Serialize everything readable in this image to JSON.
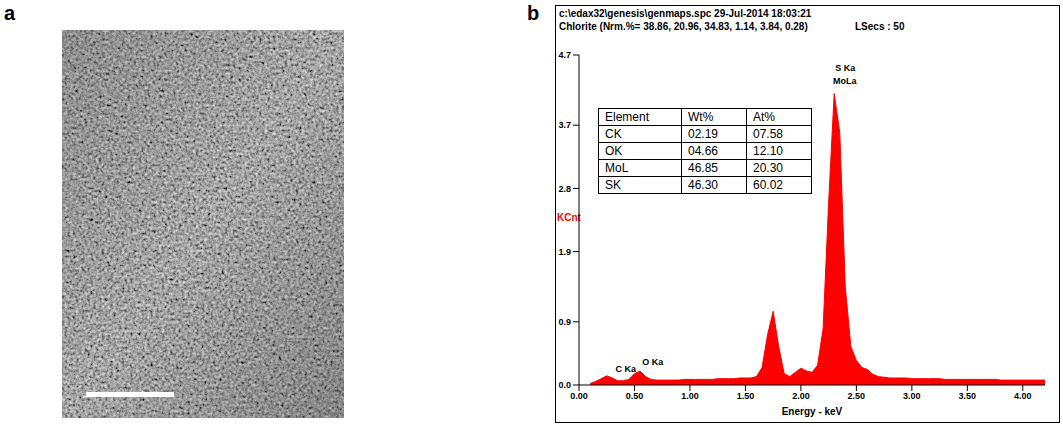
{
  "panel_labels": [
    "a",
    "b"
  ],
  "chart_data": {
    "type": "area",
    "title": "c:\\edax32\\genesis\\genmaps.spc 29-Jul-2014 18:03:21",
    "subtitle": "Chlorite (Nrm.%= 38.86, 20.96, 34.83, 1.14, 3.84, 0.28)",
    "info": "LSecs : 50",
    "x_label": "Energy - keV",
    "y_label": "KCnt",
    "color": "#ff0000",
    "grid": false,
    "xlim": [
      0,
      4.2
    ],
    "xticks": [
      {
        "value": 0,
        "label": "0.00"
      },
      {
        "value": 0.5,
        "label": "0.50"
      },
      {
        "value": 1,
        "label": "1.00"
      },
      {
        "value": 1.5,
        "label": "1.50"
      },
      {
        "value": 2,
        "label": "2.00"
      },
      {
        "value": 2.5,
        "label": "2.50"
      },
      {
        "value": 3,
        "label": "3.00"
      },
      {
        "value": 3.5,
        "label": "3.50"
      },
      {
        "value": 4,
        "label": "4.00"
      }
    ],
    "ylim": [
      0,
      4.7
    ],
    "yticks": [
      {
        "value": 0,
        "label": "0.0"
      },
      0.9,
      1.9,
      2.8,
      3.7,
      4.7
    ],
    "x": [
      0.1,
      0.15,
      0.2,
      0.25,
      0.3,
      0.35,
      0.4,
      0.45,
      0.5,
      0.55,
      0.6,
      0.65,
      0.7,
      0.75,
      0.8,
      0.85,
      0.9,
      0.95,
      1.0,
      1.05,
      1.1,
      1.15,
      1.2,
      1.25,
      1.3,
      1.35,
      1.4,
      1.45,
      1.5,
      1.55,
      1.6,
      1.65,
      1.7,
      1.75,
      1.8,
      1.85,
      1.9,
      1.95,
      2.0,
      2.05,
      2.1,
      2.15,
      2.2,
      2.25,
      2.3,
      2.35,
      2.4,
      2.45,
      2.5,
      2.55,
      2.6,
      2.65,
      2.7,
      2.75,
      2.8,
      2.85,
      2.9,
      2.95,
      3.0,
      3.05,
      3.1,
      3.15,
      3.2,
      3.25,
      3.3,
      3.35,
      3.4,
      3.45,
      3.5,
      3.55,
      3.6,
      3.65,
      3.7,
      3.75,
      3.8,
      3.85,
      3.9,
      3.95,
      4.0,
      4.05,
      4.1,
      4.15,
      4.2
    ],
    "values": [
      0.02,
      0.05,
      0.09,
      0.13,
      0.1,
      0.06,
      0.06,
      0.08,
      0.16,
      0.2,
      0.12,
      0.08,
      0.07,
      0.07,
      0.07,
      0.07,
      0.07,
      0.08,
      0.08,
      0.08,
      0.08,
      0.08,
      0.08,
      0.09,
      0.09,
      0.09,
      0.09,
      0.1,
      0.1,
      0.1,
      0.12,
      0.25,
      0.72,
      1.05,
      0.55,
      0.16,
      0.12,
      0.18,
      0.24,
      0.2,
      0.18,
      0.28,
      0.8,
      2.6,
      4.15,
      3.6,
      1.4,
      0.55,
      0.35,
      0.25,
      0.22,
      0.15,
      0.12,
      0.11,
      0.1,
      0.1,
      0.1,
      0.1,
      0.09,
      0.09,
      0.09,
      0.09,
      0.09,
      0.09,
      0.08,
      0.08,
      0.08,
      0.08,
      0.08,
      0.08,
      0.08,
      0.08,
      0.08,
      0.08,
      0.07,
      0.07,
      0.07,
      0.07,
      0.07,
      0.07,
      0.07,
      0.07,
      0.07
    ],
    "annotations": [
      {
        "text": "C Ka",
        "x": 0.33,
        "y": 0.19
      },
      {
        "text": "O Ka",
        "x": 0.57,
        "y": 0.28
      },
      {
        "text": "S Ka",
        "x": 2.31,
        "y": 4.47
      },
      {
        "text": "MoLa",
        "x": 2.29,
        "y": 4.29
      }
    ]
  },
  "table": {
    "header": [
      "Element",
      "Wt%",
      "At%"
    ],
    "rows": [
      [
        "CK",
        "02.19",
        "07.58"
      ],
      [
        "OK",
        "04.66",
        "12.10"
      ],
      [
        "MoL",
        "46.85",
        "20.30"
      ],
      [
        "SK",
        "46.30",
        "60.02"
      ]
    ]
  }
}
